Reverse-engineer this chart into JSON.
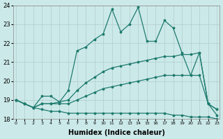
{
  "xlabel": "Humidex (Indice chaleur)",
  "background_color": "#cce9e9",
  "grid_color": "#b0cccc",
  "line_color": "#1e7b6e",
  "x": [
    0,
    1,
    2,
    3,
    4,
    5,
    6,
    7,
    8,
    9,
    10,
    11,
    12,
    13,
    14,
    15,
    16,
    17,
    18,
    19,
    20,
    21,
    22,
    23
  ],
  "series_bottom": [
    19.0,
    18.8,
    18.6,
    18.5,
    18.4,
    18.4,
    18.3,
    18.3,
    18.3,
    18.3,
    18.3,
    18.3,
    18.3,
    18.3,
    18.3,
    18.3,
    18.3,
    18.3,
    18.2,
    18.2,
    18.1,
    18.1,
    18.1,
    18.0
  ],
  "series_low_rise": [
    19.0,
    18.8,
    18.6,
    18.8,
    18.8,
    18.8,
    18.8,
    19.0,
    19.2,
    19.4,
    19.6,
    19.7,
    19.8,
    19.9,
    20.0,
    20.1,
    20.2,
    20.3,
    20.3,
    20.3,
    20.3,
    20.3,
    18.8,
    18.2
  ],
  "series_high_rise": [
    19.0,
    18.8,
    18.6,
    18.8,
    18.8,
    18.9,
    19.0,
    19.5,
    19.9,
    20.2,
    20.5,
    20.7,
    20.8,
    20.9,
    21.0,
    21.1,
    21.2,
    21.3,
    21.3,
    21.4,
    21.4,
    21.5,
    18.8,
    18.5
  ],
  "series_jagged": [
    19.0,
    18.8,
    18.6,
    19.2,
    19.2,
    18.9,
    19.5,
    21.6,
    21.8,
    22.2,
    22.5,
    23.8,
    22.6,
    23.0,
    23.9,
    22.1,
    22.1,
    23.2,
    22.8,
    21.5,
    20.3,
    21.5,
    18.8,
    18.5
  ],
  "ylim": [
    18,
    24
  ],
  "xlim_min": -0.3,
  "xlim_max": 23.3,
  "yticks": [
    18,
    19,
    20,
    21,
    22,
    23,
    24
  ],
  "xticks": [
    0,
    1,
    2,
    3,
    4,
    5,
    6,
    7,
    8,
    9,
    10,
    11,
    12,
    13,
    14,
    15,
    16,
    17,
    18,
    19,
    20,
    21,
    22,
    23
  ]
}
